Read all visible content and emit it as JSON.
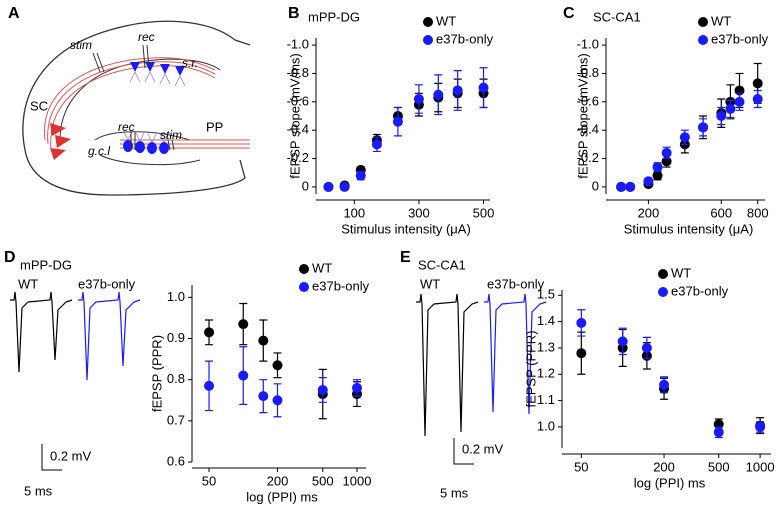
{
  "figure": {
    "panel_labels": [
      "A",
      "B",
      "C",
      "D",
      "E"
    ],
    "diagram_labels": [
      "stim",
      "rec",
      "s.r.",
      "SC",
      "rec",
      "stim",
      "g.c.l",
      "PP"
    ],
    "trace_labels": [
      [
        "WT",
        "e37b-only"
      ],
      [
        "WT",
        "e37b-only"
      ]
    ],
    "scale_bars": [
      [
        "0.2 mV",
        "5 ms"
      ],
      [
        "0.2 mV",
        "5 ms"
      ]
    ]
  },
  "chart_data": [
    {
      "type": "scatter",
      "title": "mPP-DG",
      "x_label": "Stimulus intensity (μA)",
      "y_label": "fEPSP slope (mV/ms)",
      "x": [
        20,
        70,
        120,
        170,
        235,
        300,
        360,
        420,
        500
      ],
      "xlim": [
        0,
        520
      ],
      "xticks": [
        100,
        300,
        500
      ],
      "ylim": [
        0.05,
        -1.05
      ],
      "yticks": [
        {
          "value": -1,
          "label": "-1.0"
        },
        -0.8,
        -0.6,
        -0.4,
        -0.2,
        0
      ],
      "legend": "top-right",
      "series": [
        {
          "name": "WT",
          "color": "#000000",
          "values": [
            0,
            -0.01,
            -0.12,
            -0.33,
            -0.5,
            -0.58,
            -0.63,
            -0.66,
            -0.66
          ],
          "errors": [
            0.01,
            0.01,
            0.02,
            0.04,
            0.06,
            0.08,
            0.1,
            0.1,
            0.1
          ]
        },
        {
          "name": "e37b-only",
          "color": "#1a1aff",
          "values": [
            0,
            0,
            -0.08,
            -0.3,
            -0.46,
            -0.62,
            -0.65,
            -0.68,
            -0.7
          ],
          "errors": [
            0.01,
            0.01,
            0.03,
            0.05,
            0.1,
            0.1,
            0.14,
            0.14,
            0.14
          ]
        }
      ]
    },
    {
      "type": "scatter",
      "title": "SC-CA1",
      "x_label": "Stimulus intensity (μA)",
      "y_label": "fEPSP slope (mV/ms)",
      "x": [
        50,
        100,
        200,
        250,
        300,
        400,
        500,
        600,
        650,
        700,
        800
      ],
      "xlim": [
        0,
        840
      ],
      "xticks": [
        200,
        600,
        800
      ],
      "ylim": [
        0.05,
        -1.05
      ],
      "yticks": [
        {
          "value": -1,
          "label": "-1.0"
        },
        -0.8,
        -0.6,
        -0.4,
        -0.2,
        0
      ],
      "legend": "top-right",
      "series": [
        {
          "name": "WT",
          "color": "#000000",
          "values": [
            0,
            0,
            -0.02,
            -0.08,
            -0.18,
            -0.3,
            -0.42,
            -0.52,
            -0.6,
            -0.68,
            -0.73
          ],
          "errors": [
            0.01,
            0.01,
            0.02,
            0.03,
            0.04,
            0.06,
            0.08,
            0.1,
            0.12,
            0.12,
            0.14
          ]
        },
        {
          "name": "e37b-only",
          "color": "#1a1aff",
          "values": [
            0,
            0,
            -0.04,
            -0.14,
            -0.24,
            -0.35,
            -0.42,
            -0.5,
            -0.55,
            -0.6,
            -0.62
          ],
          "errors": [
            0.01,
            0.01,
            0.02,
            0.03,
            0.04,
            0.05,
            0.06,
            0.06,
            0.06,
            0.06,
            0.06
          ]
        }
      ]
    },
    {
      "type": "scatter",
      "title": "mPP-DG",
      "x_label": "log (PPI) ms",
      "y_label": "fEPSP (PPR)",
      "log_x": true,
      "x": [
        50,
        100,
        150,
        200,
        500,
        1000
      ],
      "xlim": [
        40,
        1200
      ],
      "xticks": [
        50,
        200,
        500,
        1000
      ],
      "ylim": [
        0.6,
        1.03
      ],
      "yticks": [
        0.6,
        0.7,
        0.8,
        0.9,
        {
          "value": 1,
          "label": "1.0"
        }
      ],
      "legend": "top-right",
      "series": [
        {
          "name": "WT",
          "color": "#000000",
          "values": [
            0.915,
            0.935,
            0.895,
            0.835,
            0.765,
            0.765
          ],
          "errors": [
            0.03,
            0.05,
            0.05,
            0.03,
            0.06,
            0.03
          ]
        },
        {
          "name": "e37b-only",
          "color": "#1a1aff",
          "values": [
            0.785,
            0.81,
            0.76,
            0.75,
            0.775,
            0.78
          ],
          "errors": [
            0.06,
            0.07,
            0.04,
            0.04,
            0.03,
            0.02
          ]
        }
      ]
    },
    {
      "type": "scatter",
      "title": "SC-CA1",
      "x_label": "log (PPI) ms",
      "y_label": "fEPSP (PPR)",
      "log_x": true,
      "x": [
        50,
        100,
        150,
        200,
        500,
        1000
      ],
      "xlim": [
        40,
        1200
      ],
      "xticks": [
        50,
        200,
        500,
        1000
      ],
      "ylim": [
        0.92,
        1.52
      ],
      "yticks": [
        {
          "value": 1,
          "label": "1.0"
        },
        1.1,
        1.2,
        1.3,
        1.4,
        1.5
      ],
      "legend": "top-right",
      "series": [
        {
          "name": "WT",
          "color": "#000000",
          "values": [
            1.28,
            1.3,
            1.27,
            1.145,
            1.01,
            1.005
          ],
          "errors": [
            0.08,
            0.07,
            0.05,
            0.04,
            0.02,
            0.03
          ]
        },
        {
          "name": "e37b-only",
          "color": "#1a1aff",
          "values": [
            1.395,
            1.325,
            1.3,
            1.16,
            0.98,
            1.0
          ],
          "errors": [
            0.05,
            0.05,
            0.04,
            0.03,
            0.02,
            0.02
          ]
        }
      ]
    }
  ]
}
